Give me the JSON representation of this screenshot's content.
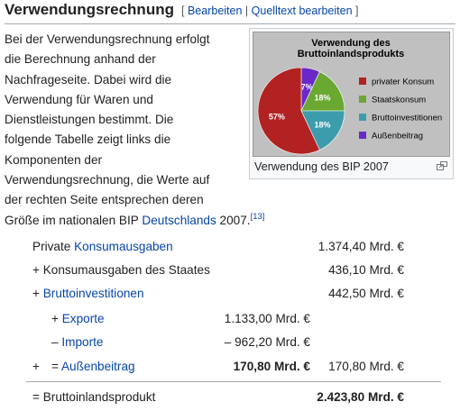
{
  "section": {
    "title": "Verwendungsrechnung",
    "edit_open": "[",
    "edit_link": "Bearbeiten",
    "edit_sep": "|",
    "source_link": "Quelltext bearbeiten",
    "edit_close": "]"
  },
  "paragraph": {
    "lines": [
      "Bei der Verwendungsrechnung erfolgt",
      "die Berechnung anhand der",
      "Nachfrageseite. Dabei wird die",
      "Verwendung für Waren und",
      "Dienstleistungen bestimmt. Die",
      "folgende Tabelle zeigt links die",
      "Komponenten der",
      "Verwendungsrechnung, die Werte auf",
      "der rechten Seite entsprechen deren"
    ],
    "last_line_prefix": "Größe im nationalen BIP ",
    "last_line_link": "Deutschlands",
    "last_line_suffix": " 2007.",
    "reference": "[13]"
  },
  "figure": {
    "caption": "Verwendung des BIP 2007",
    "enlarge_icon": "magnify-clip-icon"
  },
  "chart_data": {
    "type": "pie",
    "title": "Verwendung des Bruttoinlandsprodukts",
    "title_lines": [
      "Verwendung des",
      "Bruttoinlandsprodukts"
    ],
    "slices": [
      {
        "label": "privater Konsum",
        "value": 57,
        "display": "57%",
        "color": "#b22222"
      },
      {
        "label": "Staatskonsum",
        "value": 18,
        "display": "18%",
        "color": "#6aa832"
      },
      {
        "label": "Bruttoinvestitionen",
        "value": 18,
        "display": "18%",
        "color": "#3d9cac"
      },
      {
        "label": "Außenbeitrag",
        "value": 7,
        "display": "7%",
        "color": "#6a28c8"
      }
    ],
    "legend_position": "right"
  },
  "table": {
    "rows": [
      {
        "prefix": "",
        "link": "Konsumausgaben",
        "label_prefix": "Private ",
        "mid": "",
        "right": "1.374,40 Mrd. €"
      },
      {
        "prefix": "+ ",
        "link": "",
        "label_prefix": "Konsumausgaben des Staates",
        "mid": "",
        "right": "436,10 Mrd. €"
      },
      {
        "prefix": "+ ",
        "link": "Bruttoinvestitionen",
        "label_prefix": "",
        "mid": "",
        "right": "442,50 Mrd. €"
      },
      {
        "prefix": "+ ",
        "link": "Exporte",
        "label_prefix": "",
        "mid": "1.133,00 Mrd. €",
        "right": ""
      },
      {
        "prefix": "– ",
        "link": "Importe",
        "label_prefix": "",
        "mid": "– 962,20 Mrd. €",
        "right": ""
      },
      {
        "prefix": "+",
        "prefix2": "= ",
        "link": "Außenbeitrag",
        "label_prefix": "",
        "mid": "170,80 Mrd. €",
        "right": "170,80 Mrd. €"
      },
      {
        "prefix": "= ",
        "link": "",
        "label_prefix": "Bruttoinlandsprodukt",
        "mid": "",
        "right": "2.423,80 Mrd. €"
      }
    ]
  }
}
